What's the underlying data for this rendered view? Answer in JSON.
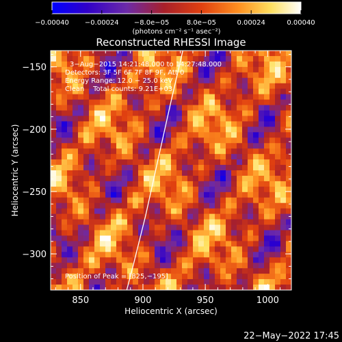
{
  "chart_data": {
    "type": "heatmap",
    "title": "Reconstructed RHESSI Image",
    "xlabel": "Heliocentric X (arcsec)",
    "ylabel": "Heliocentric Y (arcsec)",
    "xlim": [
      826,
      1019
    ],
    "ylim": [
      -329,
      -137
    ],
    "x_ticks": [
      {
        "value": 850,
        "label": "850"
      },
      {
        "value": 900,
        "label": "900"
      },
      {
        "value": 950,
        "label": "950"
      },
      {
        "value": 1000,
        "label": "1000"
      }
    ],
    "y_ticks": [
      {
        "value": -150,
        "label": "−150"
      },
      {
        "value": -200,
        "label": "−200"
      },
      {
        "value": -250,
        "label": "−250"
      },
      {
        "value": -300,
        "label": "−300"
      }
    ],
    "colorbar": {
      "ticks": [
        {
          "value": -0.0004,
          "label": "−0.00040"
        },
        {
          "value": -0.00024,
          "label": "−0.00024"
        },
        {
          "value": -8e-05,
          "label": "−8.0e−05"
        },
        {
          "value": 8e-05,
          "label": "8.0e−05"
        },
        {
          "value": 0.00024,
          "label": "0.00024"
        },
        {
          "value": 0.0004,
          "label": "0.00040"
        }
      ],
      "unit_label": "(photons cm⁻² s⁻¹ asec⁻²)",
      "colors": [
        "#0000ff",
        "#3000c8",
        "#6c2aa8",
        "#a8202a",
        "#e04010",
        "#ff9020",
        "#ffe060",
        "#ffffff"
      ]
    },
    "annotations": [
      "3−Aug−2015 14:21:48.000 to 14:27:48.000",
      "Detectors: 3F 5F 6F 7F 8F 9F, Att 0",
      "Energy Range: 12.0 − 25.0 keV",
      "Clean    Total counts: 9.21E+03",
      "Position of Peak = [825,−195]"
    ],
    "limb": [
      {
        "x": 932,
        "y": -137
      },
      {
        "x": 922,
        "y": -180
      },
      {
        "x": 912,
        "y": -225
      },
      {
        "x": 902,
        "y": -270
      },
      {
        "x": 892,
        "y": -310
      },
      {
        "x": 887,
        "y": -329
      }
    ],
    "peak_position": {
      "x": 825,
      "y": -195
    }
  },
  "footer": {
    "date_stamp": "22−May−2022 17:45"
  }
}
